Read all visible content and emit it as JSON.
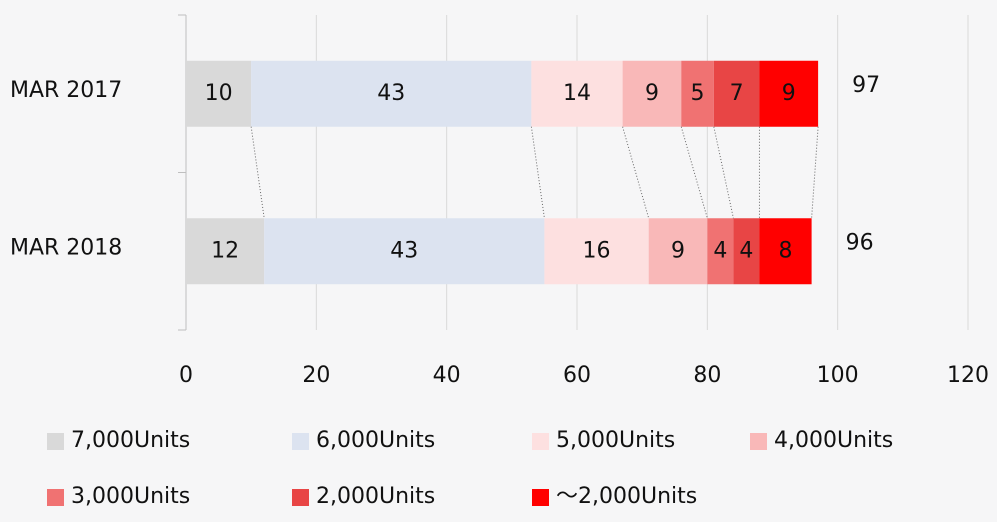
{
  "chart_data": {
    "type": "stacked_barh",
    "categories": [
      "MAR 2017",
      "MAR 2018"
    ],
    "series": [
      {
        "name": "7,000Units",
        "color": "#d9d9d9",
        "values": [
          10,
          12
        ]
      },
      {
        "name": "6,000Units",
        "color": "#dce3f0",
        "values": [
          43,
          43
        ]
      },
      {
        "name": "5,000Units",
        "color": "#fde0e0",
        "values": [
          14,
          16
        ]
      },
      {
        "name": "4,000Units",
        "color": "#f9b8b8",
        "values": [
          9,
          9
        ]
      },
      {
        "name": "3,000Units",
        "color": "#f07272",
        "values": [
          5,
          4
        ]
      },
      {
        "name": "2,000Units",
        "color": "#e84545",
        "values": [
          7,
          4
        ]
      },
      {
        "name": "～2,000Units",
        "color": "#ff0000",
        "values": [
          9,
          8
        ]
      }
    ],
    "totals": [
      97,
      96
    ],
    "xlim": [
      0,
      120
    ],
    "xticks": [
      0,
      20,
      40,
      60,
      80,
      100,
      120
    ],
    "grid": true,
    "legend": "bottom"
  }
}
